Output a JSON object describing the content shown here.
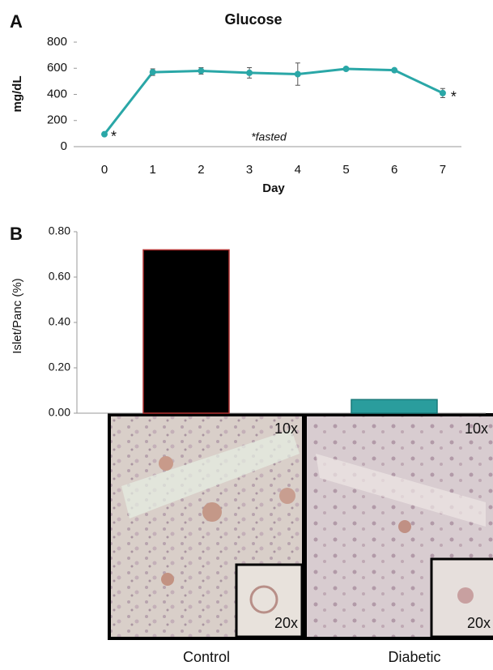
{
  "chart_data": [
    {
      "type": "line",
      "panel": "A",
      "title": "Glucose",
      "ylabel": "mg/dL",
      "xlabel": "Day",
      "x": [
        0,
        1,
        2,
        3,
        4,
        5,
        6,
        7
      ],
      "values": [
        95,
        570,
        580,
        565,
        555,
        595,
        585,
        410
      ],
      "errors": [
        10,
        25,
        25,
        40,
        85,
        12,
        12,
        35
      ],
      "color": "#2aa7a7",
      "ylim": [
        0,
        800
      ],
      "yticks": [
        0,
        200,
        400,
        600,
        800
      ],
      "asterisks": [
        "*",
        "*"
      ],
      "annotation": "*fasted"
    },
    {
      "type": "bar",
      "panel": "B",
      "ylabel": "Islet/Panc (%)",
      "categories": [
        "Control",
        "Diabetic"
      ],
      "values": [
        0.72,
        0.06
      ],
      "colors": [
        "#000000",
        "#2a9d9d"
      ],
      "edge_colors": [
        "#b03030",
        "#1a7a7a"
      ],
      "ylim": [
        0,
        0.8
      ],
      "yticks": [
        {
          "value": 0,
          "label": "0.00"
        },
        {
          "value": 0.2,
          "label": "0.20"
        },
        {
          "value": 0.4,
          "label": "0.40"
        },
        {
          "value": 0.6,
          "label": "0.60"
        },
        {
          "value": 0.8,
          "label": "0.80"
        }
      ],
      "image_labels": [
        [
          "10x",
          "20x"
        ],
        [
          "10x",
          "20x"
        ]
      ]
    }
  ]
}
